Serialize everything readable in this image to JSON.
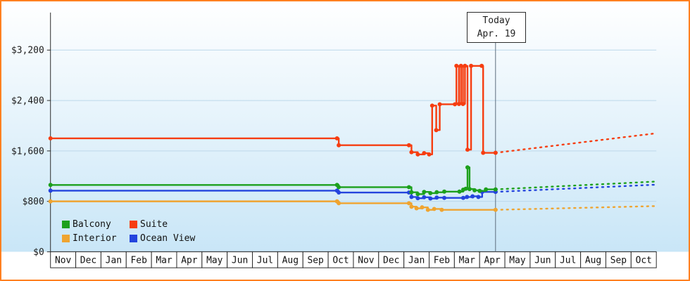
{
  "frame": {
    "border_color": "#ff8020",
    "bg_gradient_top": "#ffffff",
    "bg_gradient_bottom": "#c9e6f7",
    "axis_color": "#2b2b2b",
    "grid_color": "#bcd8ea",
    "today_line_color": "#5d6d7e"
  },
  "legend": {
    "items": [
      {
        "label": "Balcony",
        "color": "#1ca01c"
      },
      {
        "label": "Suite",
        "color": "#f63d10"
      },
      {
        "label": "Interior",
        "color": "#efa430"
      },
      {
        "label": "Ocean View",
        "color": "#2444dd"
      }
    ]
  },
  "chart_data": {
    "type": "line",
    "style": "step-after price history with dotted forecast",
    "x_unit": "months_from_chart_start",
    "today": {
      "line1": "Today",
      "line2": "Apr. 19",
      "position": 17.63
    },
    "x_axis": {
      "months": [
        "Nov",
        "Dec",
        "Jan",
        "Feb",
        "Mar",
        "Apr",
        "May",
        "Jun",
        "Jul",
        "Aug",
        "Sep",
        "Oct",
        "Nov",
        "Dec",
        "Jan",
        "Feb",
        "Mar",
        "Apr",
        "May",
        "Jun",
        "Jul",
        "Aug",
        "Sep",
        "Oct"
      ]
    },
    "y_axis": {
      "min": 0,
      "tick_interval": 800,
      "ticks": [
        {
          "value": 0,
          "label": "$0"
        },
        {
          "value": 800,
          "label": "$800"
        },
        {
          "value": 1600,
          "label": "$1,600"
        },
        {
          "value": 2400,
          "label": "$2,400"
        },
        {
          "value": 3200,
          "label": "$3,200"
        }
      ]
    },
    "series": [
      {
        "name": "Interior",
        "color": "#efa430",
        "points": [
          [
            0,
            800
          ],
          [
            11.35,
            800
          ],
          [
            11.42,
            770
          ],
          [
            14.2,
            770
          ],
          [
            14.3,
            715
          ],
          [
            14.5,
            690
          ],
          [
            14.72,
            705
          ],
          [
            14.95,
            665
          ],
          [
            15.2,
            680
          ],
          [
            15.5,
            665
          ],
          [
            17.63,
            665
          ]
        ],
        "forecast": [
          [
            17.63,
            665
          ],
          [
            24,
            725
          ]
        ]
      },
      {
        "name": "Ocean View",
        "color": "#2444dd",
        "points": [
          [
            0,
            970
          ],
          [
            11.35,
            970
          ],
          [
            11.42,
            940
          ],
          [
            14.2,
            940
          ],
          [
            14.3,
            870
          ],
          [
            14.55,
            850
          ],
          [
            14.8,
            865
          ],
          [
            15.05,
            845
          ],
          [
            15.3,
            860
          ],
          [
            15.6,
            855
          ],
          [
            16.35,
            855
          ],
          [
            16.5,
            870
          ],
          [
            16.72,
            880
          ],
          [
            16.95,
            870
          ],
          [
            17.1,
            950
          ],
          [
            17.63,
            950
          ]
        ],
        "forecast": [
          [
            17.63,
            950
          ],
          [
            24,
            1065
          ]
        ]
      },
      {
        "name": "Balcony",
        "color": "#1ca01c",
        "points": [
          [
            0,
            1060
          ],
          [
            11.35,
            1060
          ],
          [
            11.42,
            1025
          ],
          [
            14.2,
            1025
          ],
          [
            14.3,
            945
          ],
          [
            14.55,
            915
          ],
          [
            14.8,
            950
          ],
          [
            15.05,
            930
          ],
          [
            15.3,
            945
          ],
          [
            15.6,
            955
          ],
          [
            16.2,
            955
          ],
          [
            16.35,
            985
          ],
          [
            16.45,
            1000
          ],
          [
            16.52,
            1340
          ],
          [
            16.6,
            995
          ],
          [
            16.8,
            975
          ],
          [
            17.0,
            965
          ],
          [
            17.25,
            990
          ],
          [
            17.63,
            990
          ]
        ],
        "forecast": [
          [
            17.63,
            990
          ],
          [
            24,
            1115
          ]
        ]
      },
      {
        "name": "Suite",
        "color": "#f63d10",
        "points": [
          [
            0,
            1800
          ],
          [
            11.35,
            1800
          ],
          [
            11.42,
            1690
          ],
          [
            14.2,
            1690
          ],
          [
            14.3,
            1580
          ],
          [
            14.55,
            1545
          ],
          [
            14.8,
            1565
          ],
          [
            15.0,
            1545
          ],
          [
            15.12,
            2320
          ],
          [
            15.28,
            1930
          ],
          [
            15.42,
            2340
          ],
          [
            16.02,
            2340
          ],
          [
            16.08,
            2950
          ],
          [
            16.18,
            2345
          ],
          [
            16.26,
            2950
          ],
          [
            16.34,
            2345
          ],
          [
            16.42,
            2950
          ],
          [
            16.52,
            1620
          ],
          [
            16.66,
            2950
          ],
          [
            17.08,
            2950
          ],
          [
            17.14,
            1570
          ],
          [
            17.63,
            1570
          ]
        ],
        "forecast": [
          [
            17.63,
            1570
          ],
          [
            24,
            1880
          ]
        ]
      }
    ]
  }
}
